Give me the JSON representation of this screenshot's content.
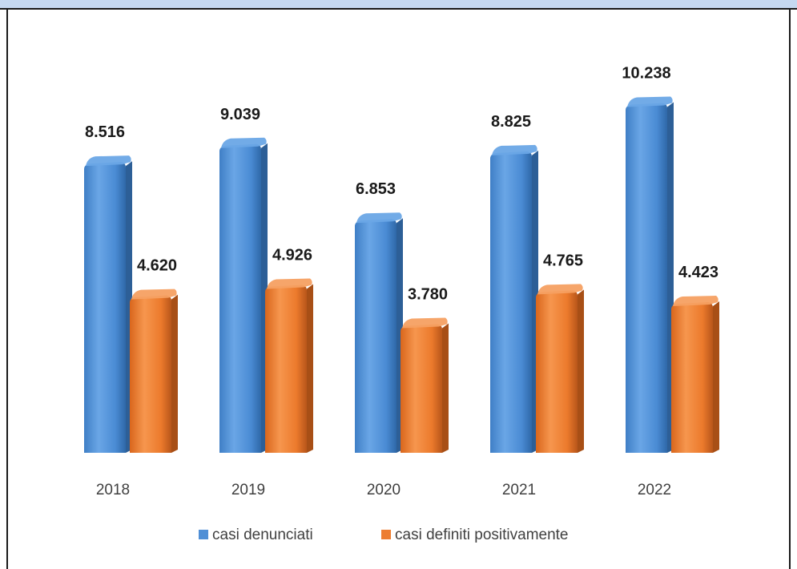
{
  "chart_data": {
    "type": "bar",
    "style": "3d-cylinder",
    "categories": [
      "2018",
      "2019",
      "2020",
      "2021",
      "2022"
    ],
    "series": [
      {
        "name": "casi denunciati",
        "color": "#4f8fd6",
        "values": [
          8516,
          9039,
          6853,
          8825,
          10238
        ],
        "labels": [
          "8.516",
          "9.039",
          "6.853",
          "8.825",
          "10.238"
        ]
      },
      {
        "name": "casi definiti positivamente",
        "color": "#ed7d31",
        "values": [
          4620,
          4926,
          3780,
          4765,
          4423
        ],
        "labels": [
          "4.620",
          "4.926",
          "3.780",
          "4.765",
          "4.423"
        ]
      }
    ],
    "ylim": [
      0,
      11000
    ],
    "grid": false,
    "legend": "bottom-center",
    "title": "",
    "xlabel": "",
    "ylabel": ""
  }
}
